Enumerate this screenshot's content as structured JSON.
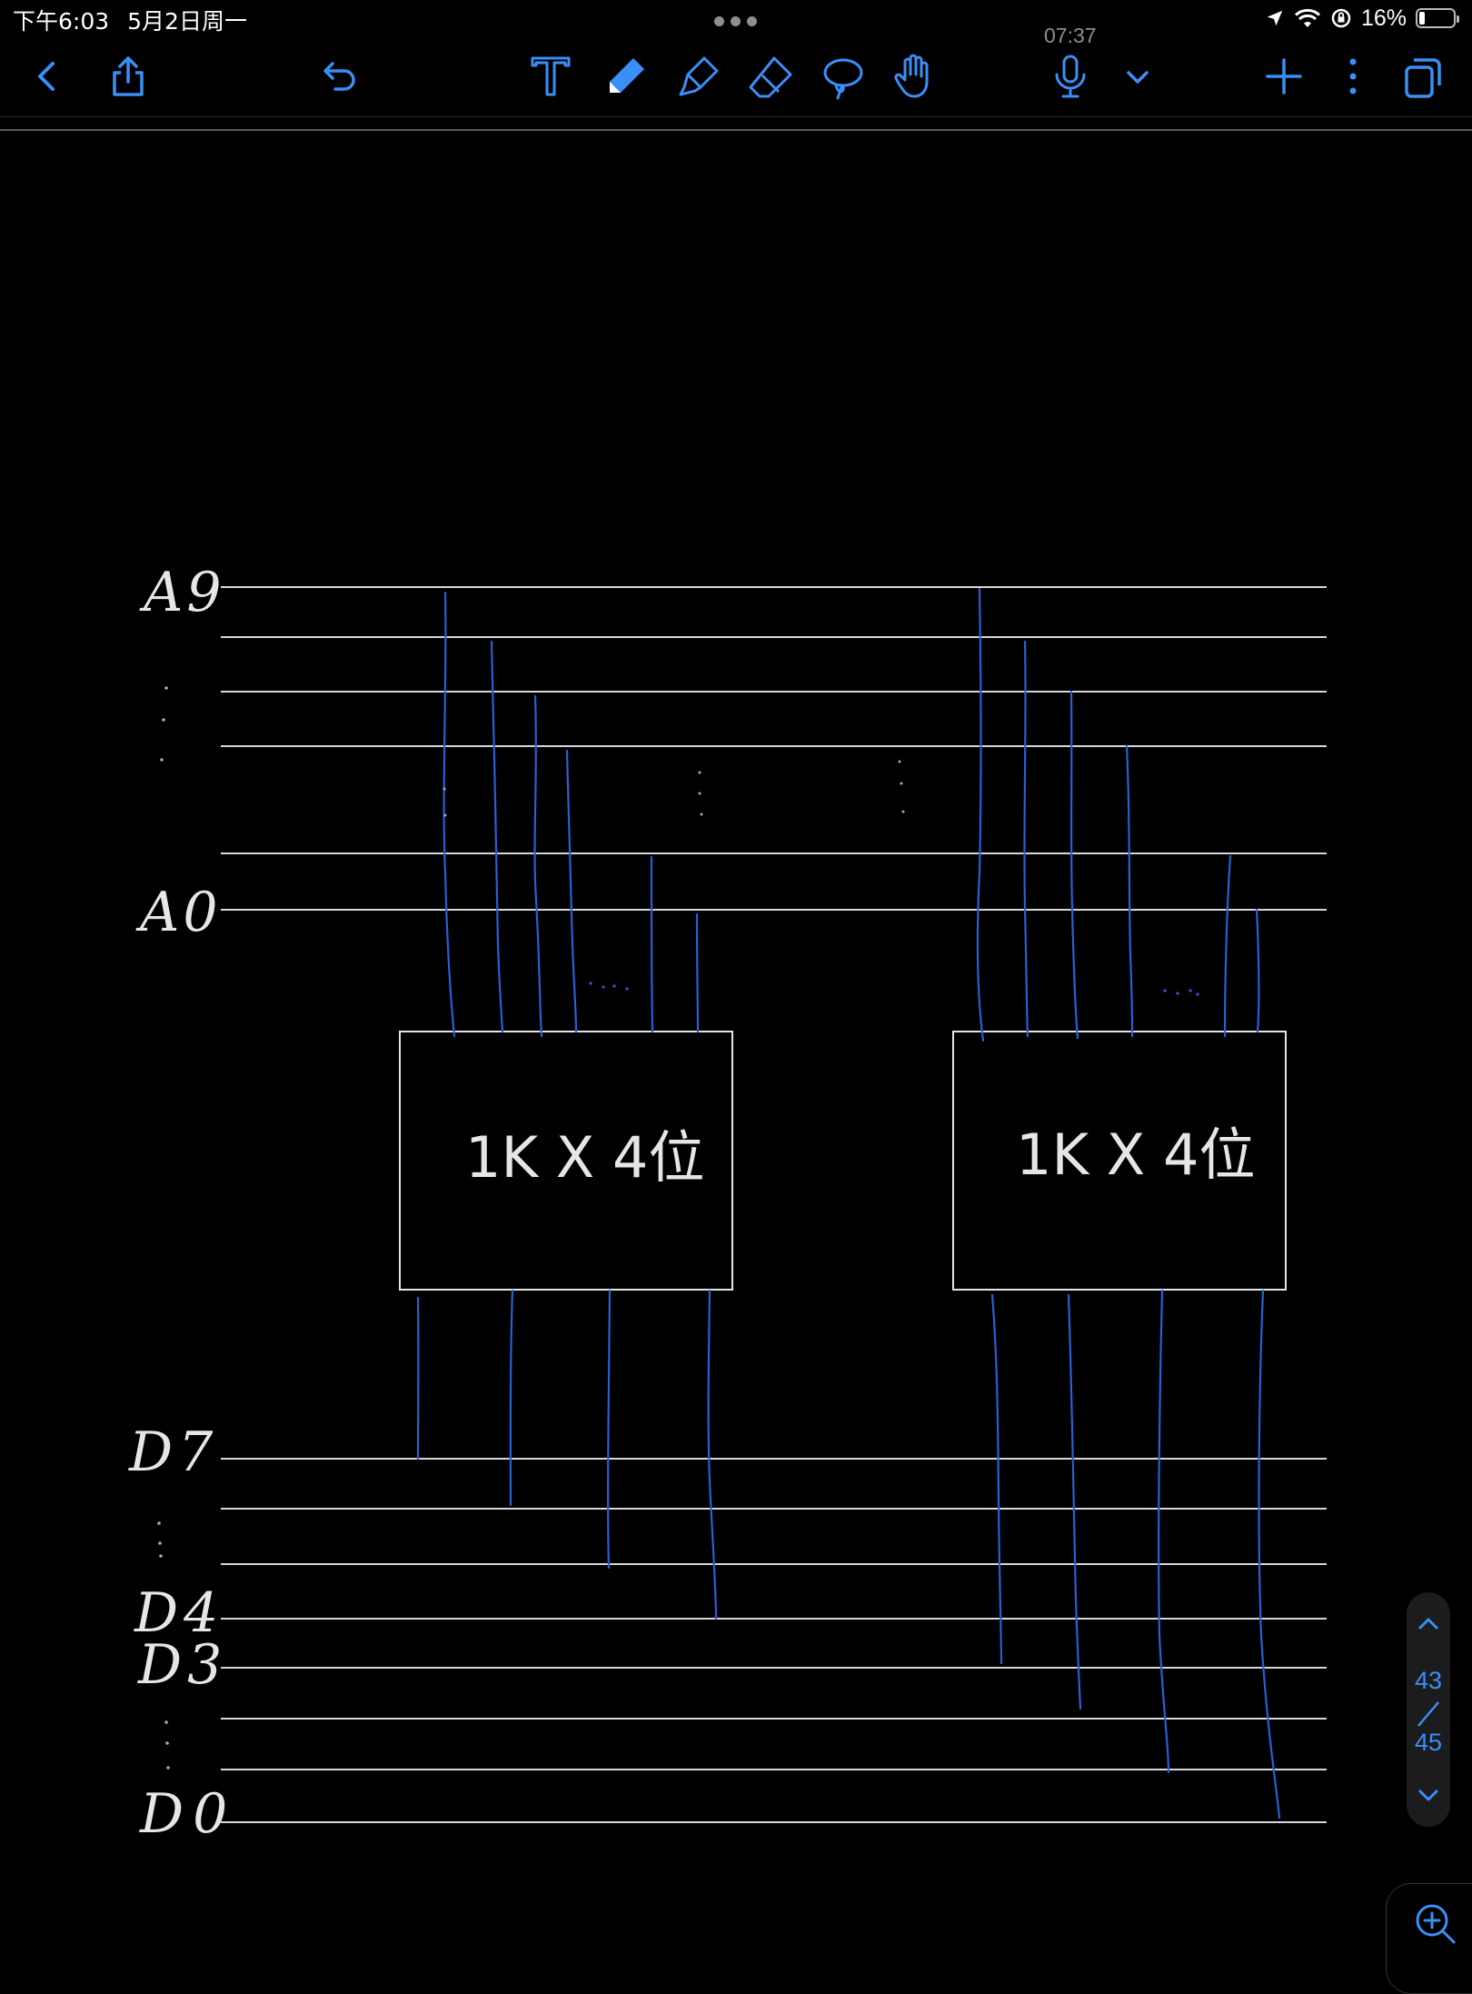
{
  "status_bar": {
    "time": "下午6:03",
    "date": "5月2日周一",
    "battery_percent": "16%",
    "battery_level": 0.16
  },
  "recording_time": "07:37",
  "toolbar": {
    "back_icon": "chevron-left-icon",
    "share_icon": "share-icon",
    "undo_icon": "undo-icon",
    "text_tool_icon": "text-tool-icon",
    "pen_tool_icon": "pen-tool-icon",
    "highlighter_icon": "highlighter-icon",
    "eraser_icon": "eraser-icon",
    "lasso_icon": "lasso-icon",
    "hand_icon": "hand-icon",
    "mic_icon": "microphone-icon",
    "more_icon": "more-icon",
    "pages_icon": "pages-icon",
    "active_tool": "pen",
    "accent_color": "#3a8ff7"
  },
  "ink": {
    "line_color": "#e6e6e6",
    "wire_color": "#2a5fd6"
  },
  "diagram": {
    "label_a9": "A9",
    "label_a0": "A0",
    "label_d7": "D7",
    "label_d4": "D4",
    "label_d3": "D3",
    "label_d0": "D0",
    "chip1_label": "1K X 4位",
    "chip2_label": "1K X 4位"
  },
  "pager": {
    "current_page": "43",
    "total_pages": "45"
  },
  "zoom_icon": "zoom-in-icon"
}
